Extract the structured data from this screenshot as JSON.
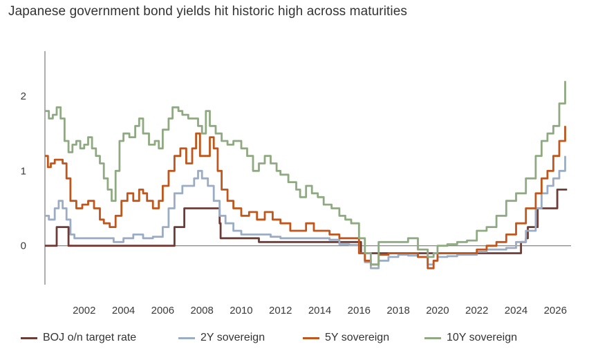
{
  "chart_data": {
    "type": "line",
    "title": "Japanese government bond yields hit historic high across maturities",
    "xlabel": "",
    "ylabel": "",
    "xlim": [
      2000.0,
      2026.8
    ],
    "ylim": [
      -0.52,
      2.6
    ],
    "yticks": [
      0,
      1,
      2
    ],
    "xticks": [
      2002,
      2004,
      2006,
      2008,
      2010,
      2012,
      2014,
      2016,
      2018,
      2020,
      2022,
      2024,
      2026
    ],
    "series": [
      {
        "name": "BOJ o/n target rate",
        "color": "#6e3b35",
        "points": [
          [
            2000.0,
            0.0
          ],
          [
            2000.4,
            0.0
          ],
          [
            2000.6,
            0.25
          ],
          [
            2001.0,
            0.25
          ],
          [
            2001.2,
            0.0
          ],
          [
            2006.5,
            0.0
          ],
          [
            2006.6,
            0.25
          ],
          [
            2007.0,
            0.25
          ],
          [
            2007.1,
            0.5
          ],
          [
            2008.8,
            0.5
          ],
          [
            2008.9,
            0.3
          ],
          [
            2008.95,
            0.1
          ],
          [
            2010.8,
            0.1
          ],
          [
            2010.9,
            0.05
          ],
          [
            2016.0,
            0.05
          ],
          [
            2016.1,
            -0.1
          ],
          [
            2024.2,
            -0.1
          ],
          [
            2024.25,
            0.05
          ],
          [
            2024.5,
            0.1
          ],
          [
            2024.6,
            0.25
          ],
          [
            2025.0,
            0.25
          ],
          [
            2025.1,
            0.5
          ],
          [
            2026.0,
            0.5
          ],
          [
            2026.1,
            0.75
          ],
          [
            2026.6,
            0.75
          ]
        ]
      },
      {
        "name": "2Y sovereign",
        "color": "#9aadc4",
        "points": [
          [
            2000.0,
            0.4
          ],
          [
            2000.2,
            0.35
          ],
          [
            2000.5,
            0.5
          ],
          [
            2000.7,
            0.6
          ],
          [
            2000.9,
            0.5
          ],
          [
            2001.1,
            0.35
          ],
          [
            2001.3,
            0.15
          ],
          [
            2001.5,
            0.1
          ],
          [
            2003.0,
            0.1
          ],
          [
            2003.5,
            0.05
          ],
          [
            2004.0,
            0.1
          ],
          [
            2004.5,
            0.15
          ],
          [
            2005.0,
            0.1
          ],
          [
            2005.5,
            0.12
          ],
          [
            2006.0,
            0.25
          ],
          [
            2006.3,
            0.5
          ],
          [
            2006.6,
            0.7
          ],
          [
            2007.0,
            0.8
          ],
          [
            2007.3,
            0.8
          ],
          [
            2007.6,
            0.9
          ],
          [
            2007.8,
            1.0
          ],
          [
            2008.0,
            0.9
          ],
          [
            2008.3,
            0.8
          ],
          [
            2008.6,
            0.6
          ],
          [
            2008.9,
            0.4
          ],
          [
            2009.2,
            0.3
          ],
          [
            2009.6,
            0.2
          ],
          [
            2010.0,
            0.15
          ],
          [
            2010.5,
            0.15
          ],
          [
            2011.0,
            0.15
          ],
          [
            2011.5,
            0.12
          ],
          [
            2012.0,
            0.1
          ],
          [
            2013.0,
            0.1
          ],
          [
            2014.0,
            0.1
          ],
          [
            2014.5,
            0.08
          ],
          [
            2015.0,
            0.02
          ],
          [
            2015.5,
            0.01
          ],
          [
            2016.0,
            -0.1
          ],
          [
            2016.3,
            -0.22
          ],
          [
            2016.6,
            -0.3
          ],
          [
            2017.0,
            -0.2
          ],
          [
            2017.5,
            -0.15
          ],
          [
            2018.0,
            -0.12
          ],
          [
            2018.5,
            -0.13
          ],
          [
            2019.0,
            -0.15
          ],
          [
            2019.5,
            -0.25
          ],
          [
            2019.8,
            -0.2
          ],
          [
            2020.0,
            -0.15
          ],
          [
            2020.5,
            -0.14
          ],
          [
            2021.0,
            -0.12
          ],
          [
            2021.5,
            -0.12
          ],
          [
            2022.0,
            -0.08
          ],
          [
            2022.5,
            -0.05
          ],
          [
            2023.0,
            -0.05
          ],
          [
            2023.5,
            -0.03
          ],
          [
            2024.0,
            0.05
          ],
          [
            2024.5,
            0.2
          ],
          [
            2025.0,
            0.5
          ],
          [
            2025.3,
            0.7
          ],
          [
            2025.6,
            0.8
          ],
          [
            2025.9,
            0.9
          ],
          [
            2026.2,
            1.0
          ],
          [
            2026.5,
            1.2
          ]
        ]
      },
      {
        "name": "5Y sovereign",
        "color": "#c0561c",
        "points": [
          [
            2000.0,
            1.2
          ],
          [
            2000.15,
            1.05
          ],
          [
            2000.3,
            1.1
          ],
          [
            2000.5,
            1.15
          ],
          [
            2000.7,
            1.15
          ],
          [
            2000.9,
            1.1
          ],
          [
            2001.1,
            0.9
          ],
          [
            2001.3,
            0.6
          ],
          [
            2001.6,
            0.5
          ],
          [
            2001.9,
            0.55
          ],
          [
            2002.2,
            0.6
          ],
          [
            2002.5,
            0.5
          ],
          [
            2002.8,
            0.35
          ],
          [
            2003.0,
            0.3
          ],
          [
            2003.3,
            0.25
          ],
          [
            2003.6,
            0.4
          ],
          [
            2003.9,
            0.6
          ],
          [
            2004.2,
            0.7
          ],
          [
            2004.5,
            0.6
          ],
          [
            2004.8,
            0.75
          ],
          [
            2005.0,
            0.7
          ],
          [
            2005.2,
            0.6
          ],
          [
            2005.5,
            0.5
          ],
          [
            2005.8,
            0.6
          ],
          [
            2006.0,
            0.8
          ],
          [
            2006.3,
            1.0
          ],
          [
            2006.6,
            1.2
          ],
          [
            2006.9,
            1.3
          ],
          [
            2007.2,
            1.1
          ],
          [
            2007.5,
            1.3
          ],
          [
            2007.7,
            1.5
          ],
          [
            2007.9,
            1.2
          ],
          [
            2008.2,
            1.2
          ],
          [
            2008.4,
            1.45
          ],
          [
            2008.6,
            1.3
          ],
          [
            2008.8,
            1.0
          ],
          [
            2009.0,
            0.75
          ],
          [
            2009.3,
            0.6
          ],
          [
            2009.6,
            0.5
          ],
          [
            2010.0,
            0.4
          ],
          [
            2010.4,
            0.45
          ],
          [
            2010.8,
            0.35
          ],
          [
            2011.2,
            0.45
          ],
          [
            2011.6,
            0.35
          ],
          [
            2012.0,
            0.3
          ],
          [
            2012.5,
            0.2
          ],
          [
            2013.0,
            0.2
          ],
          [
            2013.3,
            0.3
          ],
          [
            2013.7,
            0.2
          ],
          [
            2014.0,
            0.2
          ],
          [
            2014.5,
            0.15
          ],
          [
            2015.0,
            0.1
          ],
          [
            2015.5,
            0.1
          ],
          [
            2016.0,
            -0.1
          ],
          [
            2016.3,
            -0.2
          ],
          [
            2016.6,
            -0.25
          ],
          [
            2017.0,
            -0.12
          ],
          [
            2017.5,
            -0.1
          ],
          [
            2018.0,
            -0.1
          ],
          [
            2018.5,
            -0.1
          ],
          [
            2019.0,
            -0.15
          ],
          [
            2019.5,
            -0.3
          ],
          [
            2019.8,
            -0.2
          ],
          [
            2020.0,
            -0.1
          ],
          [
            2020.5,
            -0.1
          ],
          [
            2021.0,
            -0.1
          ],
          [
            2021.5,
            -0.1
          ],
          [
            2022.0,
            -0.05
          ],
          [
            2022.5,
            0.0
          ],
          [
            2023.0,
            0.05
          ],
          [
            2023.5,
            0.15
          ],
          [
            2024.0,
            0.3
          ],
          [
            2024.5,
            0.5
          ],
          [
            2025.0,
            0.7
          ],
          [
            2025.3,
            0.9
          ],
          [
            2025.6,
            1.0
          ],
          [
            2025.9,
            1.2
          ],
          [
            2026.2,
            1.4
          ],
          [
            2026.5,
            1.6
          ]
        ]
      },
      {
        "name": "10Y sovereign",
        "color": "#8faa82",
        "points": [
          [
            2000.0,
            1.8
          ],
          [
            2000.2,
            1.7
          ],
          [
            2000.4,
            1.75
          ],
          [
            2000.6,
            1.85
          ],
          [
            2000.8,
            1.7
          ],
          [
            2001.0,
            1.4
          ],
          [
            2001.2,
            1.25
          ],
          [
            2001.4,
            1.35
          ],
          [
            2001.6,
            1.4
          ],
          [
            2001.8,
            1.3
          ],
          [
            2002.0,
            1.35
          ],
          [
            2002.2,
            1.45
          ],
          [
            2002.4,
            1.3
          ],
          [
            2002.6,
            1.2
          ],
          [
            2002.8,
            1.1
          ],
          [
            2003.0,
            0.9
          ],
          [
            2003.2,
            0.75
          ],
          [
            2003.4,
            0.6
          ],
          [
            2003.6,
            1.0
          ],
          [
            2003.8,
            1.4
          ],
          [
            2004.0,
            1.5
          ],
          [
            2004.3,
            1.45
          ],
          [
            2004.6,
            1.6
          ],
          [
            2004.8,
            1.7
          ],
          [
            2005.0,
            1.5
          ],
          [
            2005.3,
            1.35
          ],
          [
            2005.6,
            1.4
          ],
          [
            2005.8,
            1.3
          ],
          [
            2006.0,
            1.55
          ],
          [
            2006.3,
            1.7
          ],
          [
            2006.5,
            1.85
          ],
          [
            2006.8,
            1.8
          ],
          [
            2007.0,
            1.75
          ],
          [
            2007.3,
            1.7
          ],
          [
            2007.5,
            1.7
          ],
          [
            2007.8,
            1.6
          ],
          [
            2008.0,
            1.5
          ],
          [
            2008.2,
            1.8
          ],
          [
            2008.4,
            1.6
          ],
          [
            2008.7,
            1.5
          ],
          [
            2009.0,
            1.4
          ],
          [
            2009.3,
            1.35
          ],
          [
            2009.6,
            1.4
          ],
          [
            2010.0,
            1.3
          ],
          [
            2010.3,
            1.2
          ],
          [
            2010.6,
            1.0
          ],
          [
            2010.9,
            1.1
          ],
          [
            2011.2,
            1.2
          ],
          [
            2011.5,
            1.1
          ],
          [
            2011.8,
            1.0
          ],
          [
            2012.0,
            0.95
          ],
          [
            2012.4,
            0.85
          ],
          [
            2012.8,
            0.75
          ],
          [
            2013.0,
            0.65
          ],
          [
            2013.3,
            0.8
          ],
          [
            2013.6,
            0.7
          ],
          [
            2013.9,
            0.65
          ],
          [
            2014.2,
            0.55
          ],
          [
            2014.6,
            0.5
          ],
          [
            2015.0,
            0.4
          ],
          [
            2015.3,
            0.35
          ],
          [
            2015.6,
            0.3
          ],
          [
            2016.0,
            0.1
          ],
          [
            2016.3,
            -0.1
          ],
          [
            2016.6,
            -0.25
          ],
          [
            2017.0,
            0.05
          ],
          [
            2017.5,
            0.05
          ],
          [
            2018.0,
            0.05
          ],
          [
            2018.5,
            0.1
          ],
          [
            2019.0,
            -0.05
          ],
          [
            2019.5,
            -0.15
          ],
          [
            2019.8,
            -0.1
          ],
          [
            2020.0,
            0.0
          ],
          [
            2020.5,
            0.02
          ],
          [
            2021.0,
            0.05
          ],
          [
            2021.5,
            0.07
          ],
          [
            2022.0,
            0.2
          ],
          [
            2022.5,
            0.25
          ],
          [
            2023.0,
            0.4
          ],
          [
            2023.5,
            0.6
          ],
          [
            2024.0,
            0.7
          ],
          [
            2024.5,
            0.9
          ],
          [
            2025.0,
            1.2
          ],
          [
            2025.3,
            1.4
          ],
          [
            2025.6,
            1.5
          ],
          [
            2025.9,
            1.6
          ],
          [
            2026.2,
            1.9
          ],
          [
            2026.5,
            2.2
          ]
        ]
      }
    ]
  }
}
